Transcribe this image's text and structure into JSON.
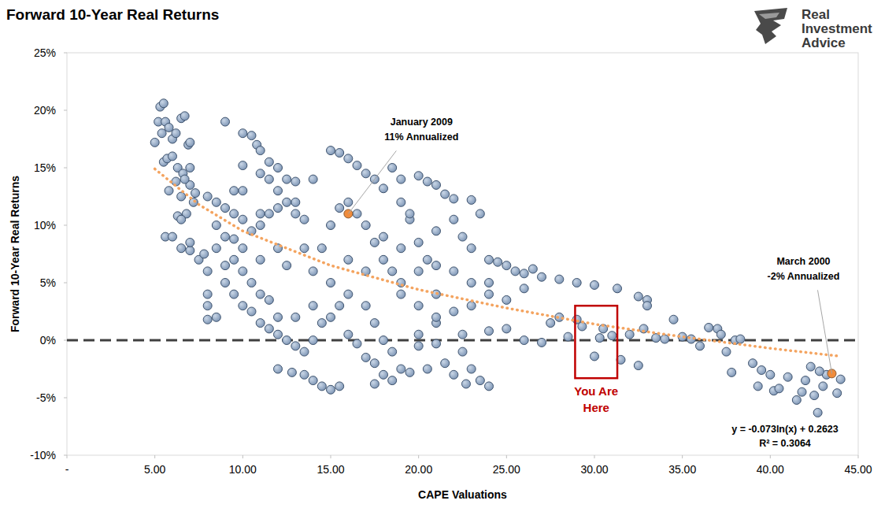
{
  "chart_data": {
    "type": "scatter",
    "title": "Forward 10-Year Real Returns",
    "x_label": "CAPE Valuations",
    "y_label": "Forward 10-Year Real Returns",
    "color": "#7d95b5",
    "marker": "circle",
    "grid": false,
    "xlim": [
      0,
      45
    ],
    "ylim": [
      -10,
      25
    ],
    "xticks": [
      {
        "value": 0,
        "label": "-"
      },
      {
        "value": 5,
        "label": "5.00"
      },
      {
        "value": 10,
        "label": "10.00"
      },
      {
        "value": 15,
        "label": "15.00"
      },
      {
        "value": 20,
        "label": "20.00"
      },
      {
        "value": 25,
        "label": "25.00"
      },
      {
        "value": 30,
        "label": "30.00"
      },
      {
        "value": 35,
        "label": "35.00"
      },
      {
        "value": 40,
        "label": "40.00"
      },
      {
        "value": 45,
        "label": "45.00"
      }
    ],
    "yticks": [
      {
        "value": -10,
        "label": "-10%"
      },
      {
        "value": -5,
        "label": "-5%"
      },
      {
        "value": 0,
        "label": "0%"
      },
      {
        "value": 5,
        "label": "5%"
      },
      {
        "value": 10,
        "label": "10%"
      },
      {
        "value": 15,
        "label": "15%"
      },
      {
        "value": 20,
        "label": "20%"
      },
      {
        "value": 25,
        "label": "25%"
      }
    ],
    "x": [
      5,
      5.2,
      5.3,
      5.5,
      5.4,
      5.6,
      5.8,
      6,
      6.2,
      6.5,
      6.7,
      6.9,
      7,
      5.5,
      5.7,
      6,
      6.3,
      6.6,
      5.8,
      6.2,
      6.5,
      7,
      7.2,
      6.8,
      5.6,
      6,
      6.3,
      6.5,
      6.5,
      7,
      7,
      7.5,
      7.8,
      6.7,
      7,
      7.3,
      8,
      8.5,
      9,
      9.5,
      10,
      8,
      8,
      8.5,
      8,
      9,
      9.5,
      10,
      10.5,
      11,
      11.5,
      12,
      9,
      10,
      10.5,
      10.8,
      11,
      11.5,
      12,
      12.5,
      13,
      10,
      11,
      11.5,
      12,
      9,
      9.5,
      10,
      10.5,
      11,
      11.5,
      12,
      12.5,
      13,
      13.5,
      8.5,
      9,
      9.5,
      10,
      10.5,
      11,
      11.5,
      12,
      12.5,
      13,
      12,
      12.8,
      13.5,
      14,
      14.5,
      15,
      15.5,
      13.5,
      14,
      14.5,
      15,
      15.5,
      16,
      14,
      14.5,
      15,
      15.5,
      15,
      15.5,
      16,
      16.5,
      17,
      17.5,
      18,
      16,
      16.5,
      17,
      17.5,
      18,
      18.5,
      19,
      17,
      17.5,
      18,
      18.5,
      17.5,
      18,
      18.5,
      19,
      16,
      16.5,
      17,
      17.5,
      20,
      20.5,
      21,
      21.5,
      22,
      23,
      23.5,
      22,
      21,
      20,
      20.5,
      21,
      19.5,
      19,
      19.5,
      22.5,
      23,
      24,
      24.5,
      25,
      25.5,
      26,
      26.5,
      27,
      28,
      29,
      30,
      31.3,
      24,
      23,
      22,
      21,
      20,
      19.5,
      20.5,
      21.5,
      22,
      23,
      23.5,
      24,
      22.7,
      22.5,
      21,
      22.5,
      24,
      25,
      26,
      27,
      27.5,
      28,
      28.5,
      29,
      29.3,
      30,
      30.3,
      30.5,
      31,
      31.5,
      32,
      32.5,
      32.5,
      33,
      33,
      32.8,
      33.5,
      34,
      34.5,
      35,
      35.5,
      36,
      36.5,
      37,
      37.2,
      37.5,
      37.8,
      38,
      38.3,
      39,
      39.3,
      39.5,
      40.2,
      40.5,
      41,
      41.5,
      42,
      42.3,
      42.5,
      42.7,
      43,
      43.2,
      43.8,
      44,
      42.8,
      41.8,
      40,
      19,
      18.5,
      14,
      13,
      12,
      11,
      10,
      9.5,
      8.5,
      8,
      20,
      21,
      19,
      24,
      25,
      26,
      22,
      23,
      20,
      15,
      14,
      13,
      16,
      17,
      18,
      19,
      20,
      21,
      13.5,
      12.5,
      11
    ],
    "values": [
      17.2,
      19,
      20.3,
      20.6,
      18,
      19,
      18.5,
      17.5,
      18,
      19.3,
      19.5,
      17,
      17.2,
      15.5,
      15.8,
      16,
      15,
      14.5,
      13,
      13.8,
      12.5,
      13.5,
      12,
      11,
      9,
      9,
      10.8,
      10.5,
      8,
      7.8,
      8.5,
      7,
      7.5,
      14,
      15,
      12.8,
      12.5,
      12,
      11.5,
      11,
      10.5,
      4,
      3,
      2,
      1.8,
      6.5,
      7,
      6,
      5,
      4,
      3.5,
      2,
      19,
      18,
      17.8,
      17,
      16.5,
      15.5,
      15,
      14,
      13.8,
      15.2,
      14.5,
      14,
      13,
      9,
      8.8,
      8,
      9.5,
      10,
      11,
      11.5,
      12,
      11,
      10.5,
      10,
      5,
      4,
      3,
      2.5,
      1.5,
      1,
      0.5,
      0,
      -0.5,
      -2.5,
      -2.8,
      -3,
      -3.5,
      -4,
      -4.3,
      -4,
      -1,
      0,
      1.5,
      2,
      3,
      4,
      6,
      8,
      10,
      11.5,
      16.5,
      16.3,
      15.8,
      15.2,
      14.5,
      14,
      13.2,
      12,
      11,
      10,
      8.5,
      7,
      6,
      5,
      3,
      1.5,
      0,
      -1,
      -2,
      -3,
      -3.5,
      -2.5,
      0.5,
      -0.3,
      -1.5,
      -3.8,
      14.3,
      13.8,
      13.5,
      12.7,
      12.3,
      12.2,
      11,
      10.5,
      9.5,
      8.5,
      7,
      6.5,
      10.5,
      12,
      11,
      9,
      8,
      7,
      6.8,
      6.5,
      6,
      5.8,
      6.2,
      5.5,
      5.3,
      5,
      4.8,
      4.5,
      4,
      3,
      2.5,
      1.5,
      0.5,
      -2.8,
      -2.5,
      -2,
      -3,
      -2.5,
      -3.5,
      -4,
      -3.8,
      -1,
      -0.3,
      0.5,
      0.8,
      1,
      0,
      -0.2,
      1.5,
      2,
      0.3,
      1.8,
      1.2,
      -1.4,
      0.2,
      1,
      0.4,
      -1.7,
      0.5,
      -2.2,
      3.8,
      3.5,
      3,
      1,
      0.2,
      0.1,
      1.8,
      0.3,
      0.1,
      -0.5,
      1.1,
      1,
      0.5,
      -1,
      -2.8,
      0,
      0.1,
      -2,
      -4,
      -2.6,
      -4.4,
      -4.2,
      -3.2,
      -5.2,
      -3.5,
      -2.3,
      -4.8,
      -6.3,
      -4,
      -3,
      -4.6,
      -3.4,
      -2.7,
      -4.5,
      -3,
      14,
      15,
      14,
      12,
      8,
      7,
      13,
      13,
      8,
      6,
      3,
      4,
      4,
      5,
      3.5,
      4.5,
      6,
      5,
      -0.5,
      5,
      3,
      2,
      7,
      6,
      9,
      8,
      6,
      2,
      8,
      6.5,
      11
    ],
    "trendline": {
      "x": [
        5,
        7.5,
        10,
        15,
        20,
        25,
        30,
        35,
        40,
        44
      ],
      "values": [
        14.9,
        11.8,
        9.5,
        6.5,
        4.4,
        2.8,
        1.4,
        0.3,
        -0.7,
        -1.4
      ],
      "color": "#f4a460",
      "line_style": "dotted"
    },
    "reference_lines": [
      {
        "value": 0,
        "color": "#404040",
        "line_style": "dashed"
      }
    ],
    "annotations": [
      {
        "text": "January 2009",
        "subtext": "11% Annualized",
        "x": 16,
        "y": 11,
        "color": "#f08c3c"
      },
      {
        "text": "March 2000",
        "subtext": "-2% Annualized",
        "x": 43.5,
        "y": -2.9,
        "color": "#f08c3c"
      }
    ],
    "highlight": {
      "text": [
        "You Are",
        "Here"
      ],
      "xlim": [
        28.9,
        31.3
      ],
      "ylim": [
        -3.3,
        3
      ],
      "color": "#c00000"
    },
    "equation": "y = -0.073ln(x) + 0.2623",
    "r_squared": "R² = 0.3064",
    "logo": [
      "Real",
      "Investment",
      "Advice"
    ]
  }
}
